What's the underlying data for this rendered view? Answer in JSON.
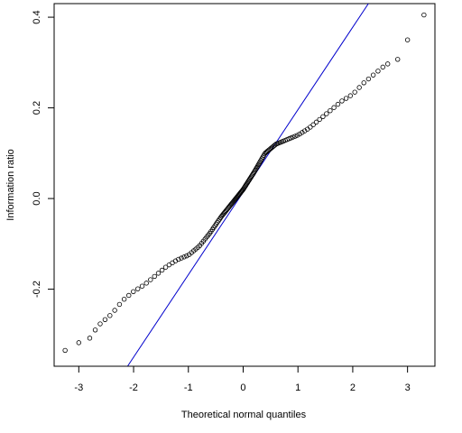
{
  "chart_data": {
    "type": "scatter",
    "xlabel": "Theoretical normal quantiles",
    "ylabel": "Information ratio",
    "xlim": [
      -3.45,
      3.5
    ],
    "ylim": [
      -0.37,
      0.43
    ],
    "x_ticks": [
      -3,
      -2,
      -1,
      0,
      1,
      2,
      3
    ],
    "x_tick_labels": [
      "-3",
      "-2",
      "-1",
      "0",
      "1",
      "2",
      "3"
    ],
    "y_ticks": [
      -0.2,
      0.0,
      0.2,
      0.4
    ],
    "y_tick_labels": [
      "-0.2",
      "0.0",
      "0.2",
      "0.4"
    ],
    "grid": false,
    "reference_line": {
      "slope": 0.182,
      "intercept": 0.014,
      "color": "#0000cc"
    },
    "points_color": "#000000",
    "quantile_curve": {
      "x": [
        -3.25,
        -3.0,
        -2.8,
        -2.6,
        -2.4,
        -2.2,
        -2.0,
        -1.8,
        -1.6,
        -1.4,
        -1.2,
        -1.0,
        -0.8,
        -0.6,
        -0.4,
        -0.2,
        0.0,
        0.2,
        0.4,
        0.6,
        0.8,
        1.0,
        1.2,
        1.4,
        1.6,
        1.8,
        2.0,
        2.2,
        2.4,
        2.6,
        2.8
      ],
      "y": [
        -0.335,
        -0.318,
        -0.305,
        -0.275,
        -0.255,
        -0.225,
        -0.205,
        -0.19,
        -0.17,
        -0.15,
        -0.135,
        -0.125,
        -0.105,
        -0.075,
        -0.04,
        -0.01,
        0.02,
        0.058,
        0.1,
        0.12,
        0.13,
        0.14,
        0.155,
        0.175,
        0.195,
        0.215,
        0.23,
        0.255,
        0.275,
        0.295,
        0.305
      ]
    },
    "outliers": [
      {
        "x": -3.25,
        "y": -0.335
      },
      {
        "x": -3.0,
        "y": -0.318
      },
      {
        "x": -2.8,
        "y": -0.308
      },
      {
        "x": 2.82,
        "y": 0.307
      },
      {
        "x": 3.0,
        "y": 0.35
      },
      {
        "x": 3.3,
        "y": 0.405
      }
    ]
  }
}
